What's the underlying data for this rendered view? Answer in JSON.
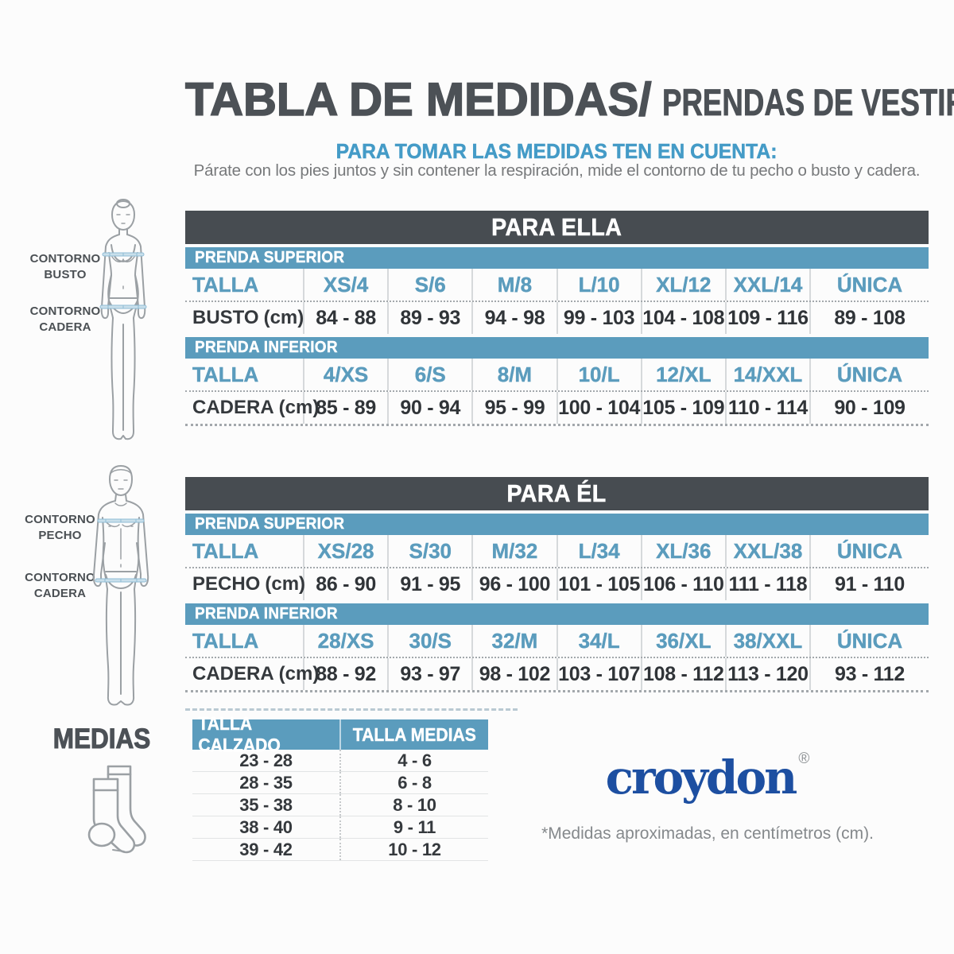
{
  "title": {
    "main": "TABLA DE MEDIDAS/",
    "suffix": "PRENDAS DE VESTIR"
  },
  "intro": {
    "heading": "PARA TOMAR LAS MEDIDAS TEN EN CUENTA:",
    "body": "Párate con los pies juntos y sin contener la respiración, mide el contorno de tu pecho o busto y cadera."
  },
  "figures": {
    "female": {
      "bust": [
        "CONTORNO",
        "BUSTO"
      ],
      "hip": [
        "CONTORNO",
        "CADERA"
      ]
    },
    "male": {
      "chest": [
        "CONTORNO",
        "PECHO"
      ],
      "hip": [
        "CONTORNO",
        "CADERA"
      ]
    }
  },
  "tables": {
    "ella": {
      "title": "PARA ELLA",
      "sections": [
        {
          "band": "PRENDA SUPERIOR",
          "size_label": "TALLA",
          "sizes": [
            "XS/4",
            "S/6",
            "M/8",
            "L/10",
            "XL/12",
            "XXL/14",
            "ÚNICA"
          ],
          "measure_label": "BUSTO",
          "measure_unit": "(cm)",
          "values": [
            "84 - 88",
            "89 - 93",
            "94 - 98",
            "99 - 103",
            "104 - 108",
            "109 - 116",
            "89 - 108"
          ]
        },
        {
          "band": "PRENDA INFERIOR",
          "size_label": "TALLA",
          "sizes": [
            "4/XS",
            "6/S",
            "8/M",
            "10/L",
            "12/XL",
            "14/XXL",
            "ÚNICA"
          ],
          "measure_label": "CADERA",
          "measure_unit": "(cm)",
          "values": [
            "85 - 89",
            "90 - 94",
            "95 - 99",
            "100 - 104",
            "105 - 109",
            "110 - 114",
            "90 - 109"
          ]
        }
      ]
    },
    "el": {
      "title": "PARA ÉL",
      "sections": [
        {
          "band": "PRENDA SUPERIOR",
          "size_label": "TALLA",
          "sizes": [
            "XS/28",
            "S/30",
            "M/32",
            "L/34",
            "XL/36",
            "XXL/38",
            "ÚNICA"
          ],
          "measure_label": "PECHO",
          "measure_unit": "(cm)",
          "values": [
            "86 - 90",
            "91 - 95",
            "96 - 100",
            "101 - 105",
            "106 - 110",
            "111 - 118",
            "91 - 110"
          ]
        },
        {
          "band": "PRENDA INFERIOR",
          "size_label": "TALLA",
          "sizes": [
            "28/XS",
            "30/S",
            "32/M",
            "34/L",
            "36/XL",
            "38/XXL",
            "ÚNICA"
          ],
          "measure_label": "CADERA",
          "measure_unit": "(cm)",
          "values": [
            "88 - 92",
            "93 - 97",
            "98 - 102",
            "103 - 107",
            "108 - 112",
            "113 - 120",
            "93 - 112"
          ]
        }
      ]
    }
  },
  "medias": {
    "heading": "MEDIAS",
    "columns": [
      "TALLA CALZADO",
      "TALLA MEDIAS"
    ],
    "rows": [
      [
        "23 - 28",
        "4 - 6"
      ],
      [
        "28 - 35",
        "6 - 8"
      ],
      [
        "35 - 38",
        "8 - 10"
      ],
      [
        "38 - 40",
        "9 - 11"
      ],
      [
        "39 - 42",
        "10 - 12"
      ]
    ]
  },
  "brand": {
    "name": "croydon",
    "mark": "®"
  },
  "footnote": "*Medidas aproximadas, en centímetros (cm).",
  "colors": {
    "accent_blue": "#5b9cbd",
    "subtitle_blue": "#449bc7",
    "dark_bar": "#474c51",
    "heading_dark": "#4c5156",
    "value_dark": "#303438",
    "text_gray": "#77797b",
    "logo_blue": "#1d4fa1",
    "figure_outline": "#9ba0a4",
    "tape_blue": "#c9dfeb"
  }
}
